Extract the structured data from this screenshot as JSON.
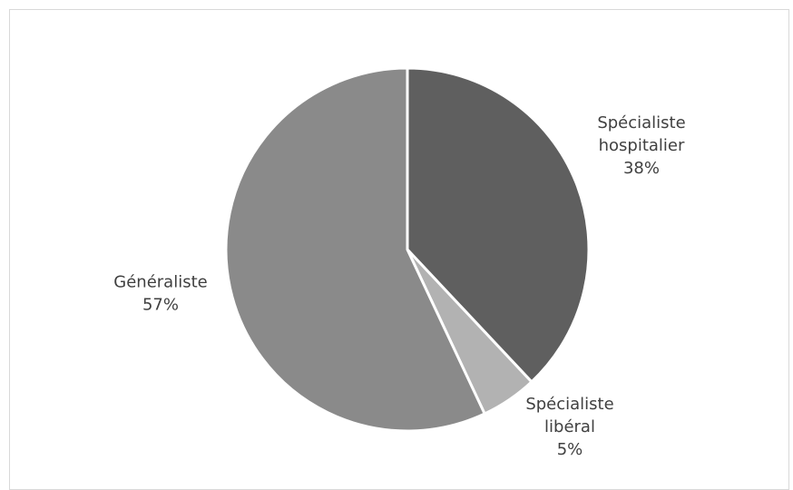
{
  "chart_data": {
    "type": "pie",
    "title": "",
    "slices": [
      {
        "name": [
          "Spécialiste",
          "hospitalier"
        ],
        "value": 38,
        "label": "38%",
        "color": "#5f5f5f"
      },
      {
        "name": [
          "Spécialiste",
          "libéral"
        ],
        "value": 5,
        "label": "5%",
        "color": "#b2b2b2"
      },
      {
        "name": [
          "Généraliste"
        ],
        "value": 57,
        "label": "57%",
        "color": "#8a8a8a"
      }
    ],
    "start": "12 o'clock",
    "direction": "clockwise",
    "legend": "none",
    "labels": "outside"
  }
}
